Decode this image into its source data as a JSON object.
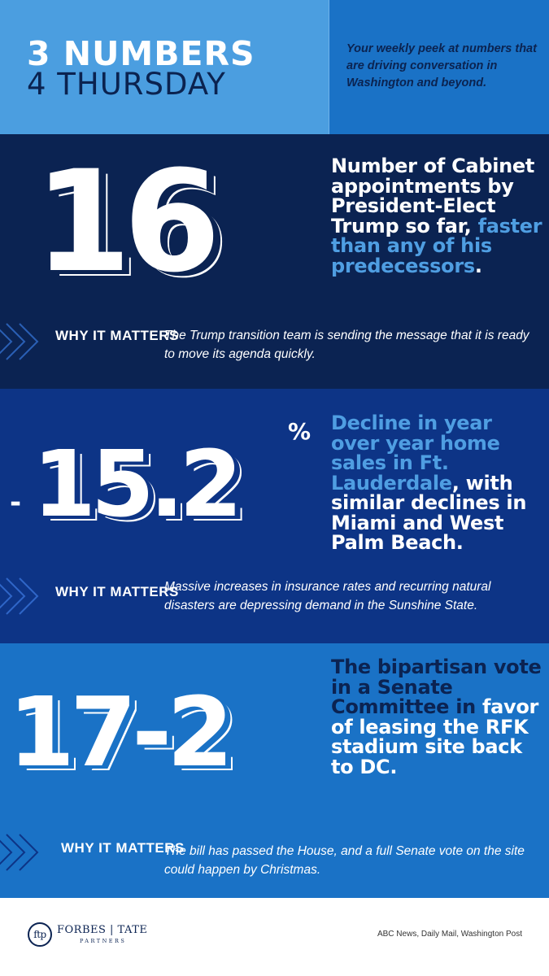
{
  "header": {
    "title_line1": "3 NUMBERS",
    "title_line2": "4 THURSDAY",
    "tagline": "Your weekly peek at numbers that are driving conversation in Washington and beyond."
  },
  "sections": [
    {
      "number": "16",
      "description_plain": "Number of Cabinet appointments by President-Elect Trump so far,",
      "description_highlight": "faster than any of his predecessors",
      "description_end": ".",
      "why_label": "WHY IT MATTERS",
      "why_text": "The Trump transition team is sending the message that it is ready to move its agenda quickly."
    },
    {
      "number_prefix": "-",
      "number": "15.2",
      "number_suffix": "%",
      "description_highlight": "Decline in year over year home sales in Ft. Lauderdale",
      "description_plain": ", with similar declines in Miami and West Palm Beach.",
      "why_label": "WHY IT MATTERS",
      "why_text": "Massive increases in insurance rates and recurring natural disasters are depressing demand in the Sunshine State."
    },
    {
      "number": "17-2",
      "description_plain": "The bipartisan vote in a Senate Committee in",
      "description_highlight": "favor",
      "description_end": "of leasing the RFK stadium site back to DC.",
      "why_label": "WHY IT MATTERS",
      "why_text": "The bill has passed the House, and a full Senate vote on the site could happen by Christmas."
    }
  ],
  "footer": {
    "logo_mark": "ftp",
    "logo_name": "FORBES | TATE",
    "logo_sub": "PARTNERS",
    "sources": "ABC News, Daily Mail, Washington Post"
  },
  "colors": {
    "header_left": "#4b9ee0",
    "header_right": "#1a72c6",
    "section1_bg": "#0b2352",
    "section2_bg": "#0d3486",
    "section3_bg": "#1a72c6",
    "highlight": "#4f9ee2"
  },
  "icons": [
    "chevrons-icon",
    "ftp-logo-icon"
  ]
}
